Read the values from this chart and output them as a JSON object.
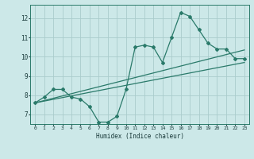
{
  "xlabel": "Humidex (Indice chaleur)",
  "ylabel": "",
  "bg_color": "#cce8e8",
  "grid_color": "#aacccc",
  "line_color": "#2a7a6a",
  "xlim": [
    -0.5,
    23.5
  ],
  "ylim": [
    6.5,
    12.7
  ],
  "xticks": [
    0,
    1,
    2,
    3,
    4,
    5,
    6,
    7,
    8,
    9,
    10,
    11,
    12,
    13,
    14,
    15,
    16,
    17,
    18,
    19,
    20,
    21,
    22,
    23
  ],
  "yticks": [
    7,
    8,
    9,
    10,
    11,
    12
  ],
  "curve1_x": [
    0,
    1,
    2,
    3,
    4,
    5,
    6,
    7,
    8,
    9,
    10,
    11,
    12,
    13,
    14,
    15,
    16,
    17,
    18,
    19,
    20,
    21,
    22,
    23
  ],
  "curve1_y": [
    7.6,
    7.9,
    8.3,
    8.3,
    7.9,
    7.8,
    7.4,
    6.6,
    6.6,
    6.9,
    8.3,
    10.5,
    10.6,
    10.5,
    9.7,
    11.0,
    12.3,
    12.1,
    11.4,
    10.7,
    10.4,
    10.4,
    9.9,
    9.9
  ],
  "curve2_x": [
    0,
    23
  ],
  "curve2_y": [
    7.6,
    10.35
  ],
  "curve3_x": [
    0,
    23
  ],
  "curve3_y": [
    7.6,
    9.7
  ]
}
